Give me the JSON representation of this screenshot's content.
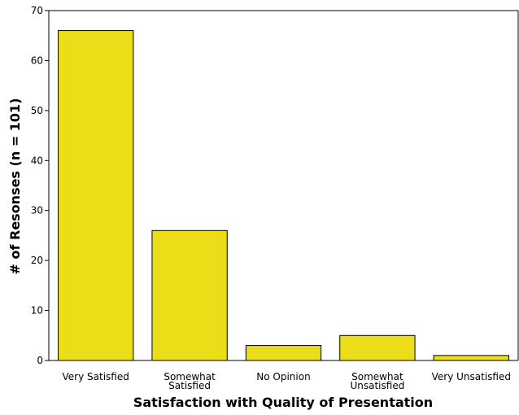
{
  "chart_data": {
    "type": "bar",
    "title": "",
    "xlabel": "Satisfaction with Quality of Presentation",
    "ylabel": "# of Resonses (n = 101)",
    "categories": [
      [
        "Very Satisfied"
      ],
      [
        "Somewhat",
        "Satisfied"
      ],
      [
        "No Opinion"
      ],
      [
        "Somewhat",
        "Unsatisfied"
      ],
      [
        "Very Unsatisfied"
      ]
    ],
    "values": [
      66,
      26,
      3,
      5,
      1
    ],
    "ylim": [
      0,
      70
    ],
    "yticks": [
      0,
      10,
      20,
      30,
      40,
      50,
      60,
      70
    ],
    "grid": false,
    "bar_color": "#ebdd18",
    "bar_edge_color": "#000000"
  }
}
